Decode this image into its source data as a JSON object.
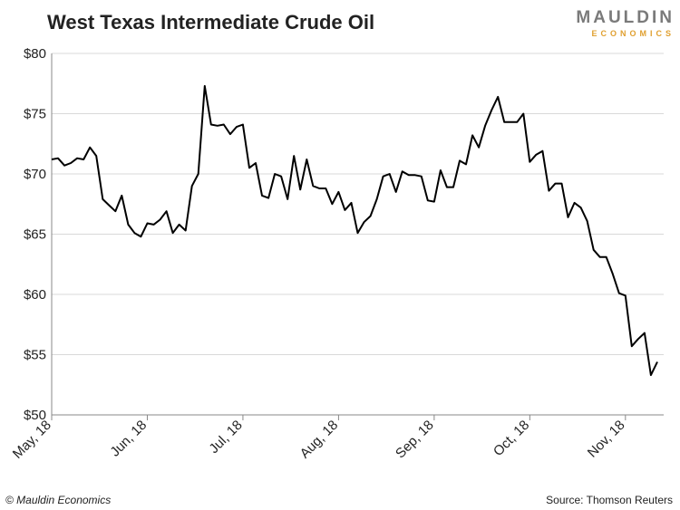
{
  "chart_data": {
    "type": "line",
    "title": "West Texas Intermediate Crude Oil",
    "logo": {
      "name": "MAULDIN",
      "sub": "ECONOMICS"
    },
    "copyright": "© Mauldin Economics",
    "source": "Source: Thomson Reuters",
    "categories": [
      "May, 18",
      null,
      null,
      null,
      null,
      null,
      null,
      null,
      null,
      null,
      null,
      null,
      null,
      null,
      null,
      "Jun, 18",
      null,
      null,
      null,
      null,
      null,
      null,
      null,
      null,
      null,
      null,
      null,
      null,
      null,
      null,
      "Jul, 18",
      null,
      null,
      null,
      null,
      null,
      null,
      null,
      null,
      null,
      null,
      null,
      null,
      null,
      null,
      "Aug, 18",
      null,
      null,
      null,
      null,
      null,
      null,
      null,
      null,
      null,
      null,
      null,
      null,
      null,
      null,
      "Sep, 18",
      null,
      null,
      null,
      null,
      null,
      null,
      null,
      null,
      null,
      null,
      null,
      null,
      null,
      null,
      "Oct, 18",
      null,
      null,
      null,
      null,
      null,
      null,
      null,
      null,
      null,
      null,
      null,
      null,
      null,
      null,
      "Nov, 18",
      null,
      null,
      null,
      null,
      null
    ],
    "series": [
      {
        "name": "WTI",
        "color": "#000000",
        "values": [
          71.2,
          71.3,
          70.7,
          70.9,
          71.3,
          71.2,
          72.2,
          71.5,
          67.9,
          67.4,
          66.9,
          68.2,
          65.8,
          65.1,
          64.8,
          65.9,
          65.8,
          66.2,
          66.9,
          65.1,
          65.8,
          65.3,
          69.0,
          70.0,
          77.3,
          74.1,
          74.0,
          74.1,
          73.3,
          73.9,
          74.1,
          70.5,
          70.9,
          68.2,
          68.0,
          70.0,
          69.8,
          67.9,
          71.5,
          68.7,
          71.2,
          69.0,
          68.8,
          68.8,
          67.5,
          68.5,
          67.0,
          67.6,
          65.1,
          66.0,
          66.5,
          67.9,
          69.8,
          70.0,
          68.5,
          70.2,
          69.9,
          69.9,
          69.8,
          67.8,
          67.7,
          70.3,
          68.9,
          68.9,
          71.1,
          70.8,
          73.2,
          72.2,
          74.0,
          75.3,
          76.4,
          74.3,
          74.3,
          74.3,
          75.0,
          71.0,
          71.6,
          71.9,
          68.6,
          69.2,
          69.2,
          66.4,
          67.6,
          67.2,
          66.1,
          63.7,
          63.1,
          63.1,
          61.7,
          60.1,
          59.9,
          55.7,
          56.3,
          56.8,
          53.3,
          54.4
        ]
      }
    ],
    "ylim": [
      50,
      80
    ],
    "yticks": [
      {
        "value": 50,
        "label": "$50"
      },
      {
        "value": 55,
        "label": "$55"
      },
      {
        "value": 60,
        "label": "$60"
      },
      {
        "value": 65,
        "label": "$65"
      },
      {
        "value": 70,
        "label": "$70"
      },
      {
        "value": 75,
        "label": "$75"
      },
      {
        "value": 80,
        "label": "$80"
      }
    ],
    "grid": true
  }
}
